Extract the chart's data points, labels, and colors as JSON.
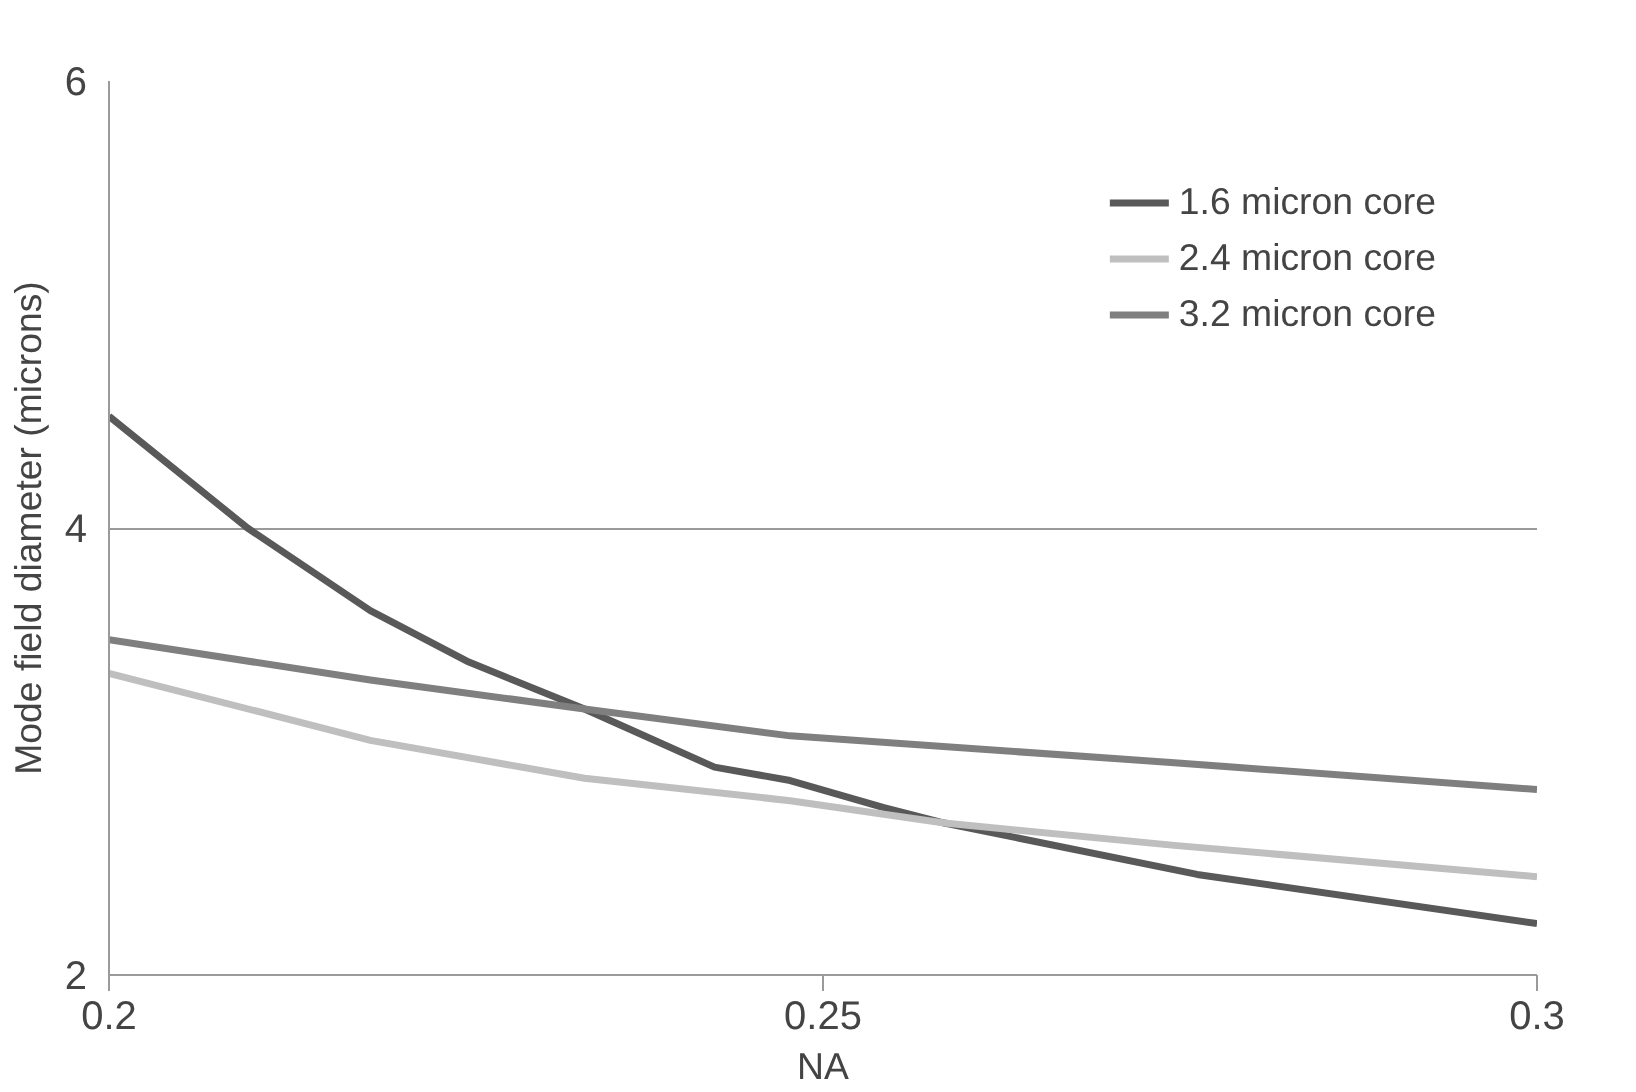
{
  "chart_data": {
    "type": "line",
    "xlabel": "NA",
    "ylabel": "Mode field diameter (microns)",
    "xlim": [
      0.2,
      0.3
    ],
    "xticks": [
      0.2,
      0.25,
      0.3
    ],
    "ylim": [
      2,
      6
    ],
    "yticks": [
      2,
      4,
      6
    ],
    "grid": "y",
    "legend": "top right",
    "marker": "none",
    "line_style": "solid",
    "series": [
      {
        "name": "1.6 micron core",
        "color": "#595959",
        "x": [
          0.2,
          0.2097,
          0.2183,
          0.2252,
          0.2333,
          0.2424,
          0.2477,
          0.2542,
          0.2585,
          0.2762,
          0.3
        ],
        "values": [
          4.5,
          4.0,
          3.63,
          3.4,
          3.19,
          2.93,
          2.87,
          2.75,
          2.68,
          2.45,
          2.23
        ]
      },
      {
        "name": "2.4 micron core",
        "color": "#bfbfbf",
        "x": [
          0.2,
          0.2183,
          0.2333,
          0.2477,
          0.2585,
          0.2746,
          0.3
        ],
        "values": [
          3.35,
          3.05,
          2.88,
          2.78,
          2.68,
          2.58,
          2.44
        ]
      },
      {
        "name": "3.2 micron core",
        "color": "#7f7f7f",
        "x": [
          0.2,
          0.2183,
          0.2333,
          0.2477,
          0.2746,
          0.3
        ],
        "values": [
          3.5,
          3.32,
          3.19,
          3.07,
          2.95,
          2.83
        ]
      }
    ]
  }
}
